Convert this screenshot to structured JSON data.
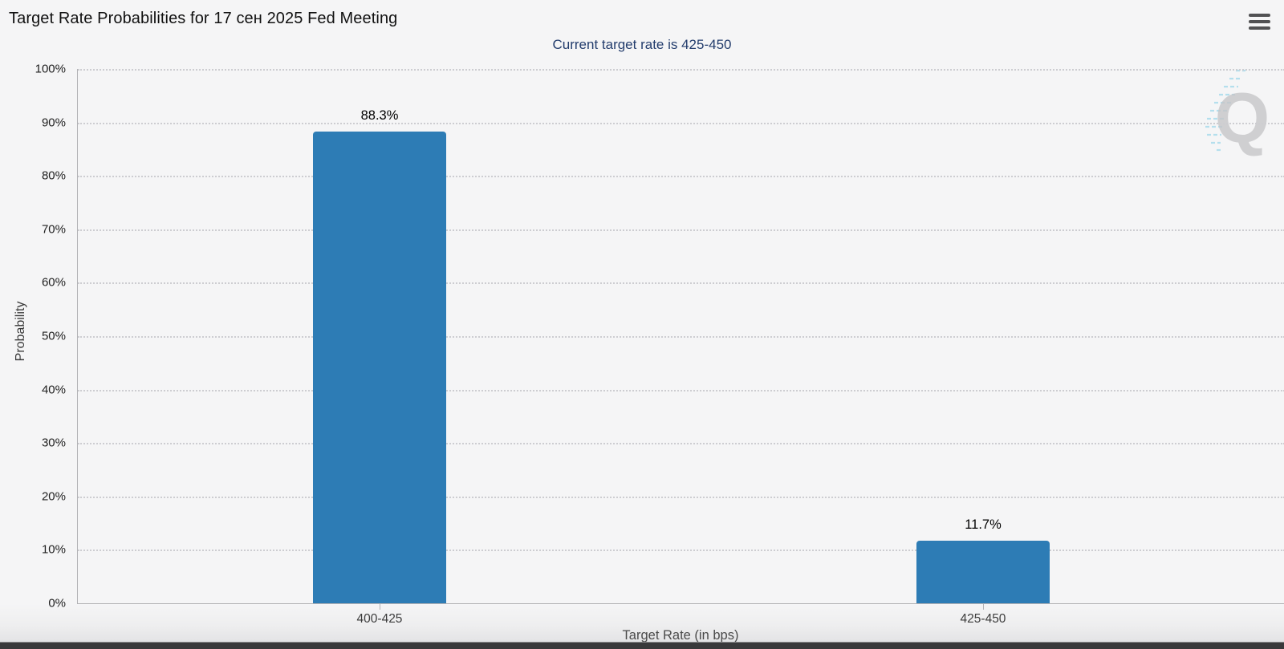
{
  "menu": {
    "icon": "hamburger-menu-icon"
  },
  "watermark": {
    "letter": "Q"
  },
  "colors": {
    "background": "#f5f5f6",
    "title": "#111111",
    "subtitle": "#233d6d",
    "bar": "#2d7cb5",
    "grid": "#cdcdd1",
    "axis": "#b2b2b5",
    "menu_icon": "#515153",
    "watermark_letter": "#c6c6c8",
    "watermark_accent": "#a9dcec",
    "window_edge": "#39393b"
  },
  "chart_data": {
    "type": "bar",
    "title": "Target Rate Probabilities for 17 сен 2025 Fed Meeting",
    "subtitle": "Current target rate is 425-450",
    "categories": [
      "400-425",
      "425-450"
    ],
    "values": [
      88.3,
      11.7
    ],
    "value_labels": [
      "88.3%",
      "11.7%"
    ],
    "xlabel": "Target Rate (in bps)",
    "ylabel": "Probability",
    "ylim": [
      0,
      100
    ],
    "y_ticks": [
      {
        "value": 0,
        "label": "0%"
      },
      {
        "value": 10,
        "label": "10%"
      },
      {
        "value": 20,
        "label": "20%"
      },
      {
        "value": 30,
        "label": "30%"
      },
      {
        "value": 40,
        "label": "40%"
      },
      {
        "value": 50,
        "label": "50%"
      },
      {
        "value": 60,
        "label": "60%"
      },
      {
        "value": 70,
        "label": "70%"
      },
      {
        "value": 80,
        "label": "80%"
      },
      {
        "value": 90,
        "label": "90%"
      },
      {
        "value": 100,
        "label": "100%"
      }
    ],
    "grid": "horizontal-dotted",
    "legend": "none",
    "bar_color": "#2d7cb5"
  }
}
